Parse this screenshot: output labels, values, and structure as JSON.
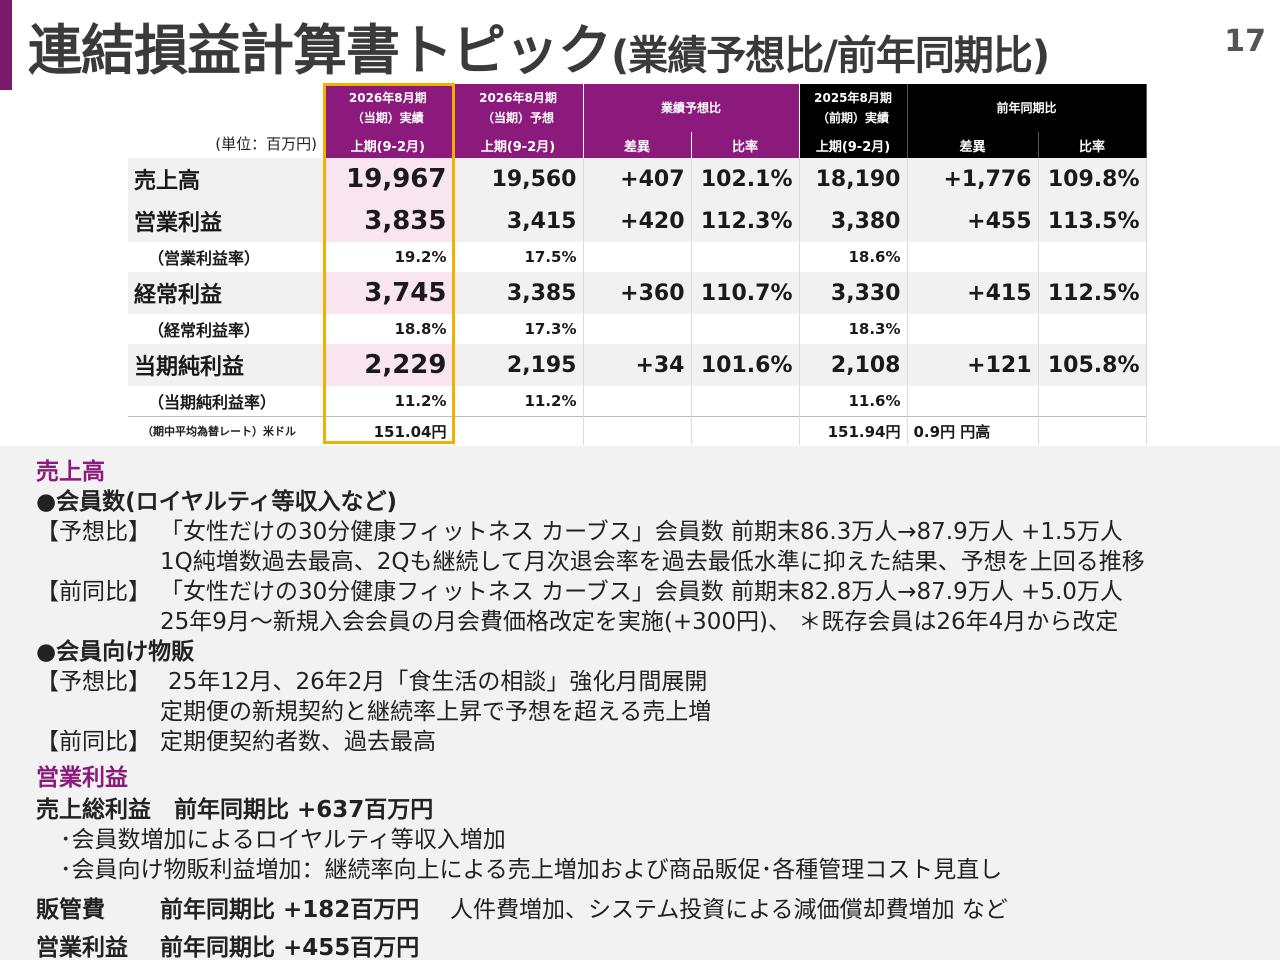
{
  "header": {
    "title_main": "連結損益計算書トピック",
    "title_sub": "(業績予想比/前年同期比)",
    "page_number": "17"
  },
  "table": {
    "unit_label": "(単位：百万円)",
    "col_headers": {
      "current_actual": "2026年8月期\n（当期）実績",
      "current_forecast": "2026年8月期\n（当期）予想",
      "vs_forecast": "業績予想比",
      "prior_actual": "2025年8月期\n（前期）実績",
      "vs_prior": "前年同期比"
    },
    "sub_headers": [
      "上期(9-2月)",
      "上期(9-2月)",
      "差異",
      "比率",
      "上期(9-2月)",
      "差異",
      "比率"
    ],
    "rows": [
      {
        "label": "売上高",
        "type": "main",
        "cells": [
          "19,967",
          "19,560",
          "+407",
          "102.1%",
          "18,190",
          "+1,776",
          "109.8%"
        ]
      },
      {
        "label": "営業利益",
        "type": "main",
        "cells": [
          "3,835",
          "3,415",
          "+420",
          "112.3%",
          "3,380",
          "+455",
          "113.5%"
        ]
      },
      {
        "label": "（営業利益率）",
        "type": "sub",
        "cells": [
          "19.2%",
          "17.5%",
          "",
          "",
          "18.6%",
          "",
          ""
        ]
      },
      {
        "label": "経常利益",
        "type": "main",
        "cells": [
          "3,745",
          "3,385",
          "+360",
          "110.7%",
          "3,330",
          "+415",
          "112.5%"
        ]
      },
      {
        "label": "（経常利益率）",
        "type": "sub",
        "cells": [
          "18.8%",
          "17.3%",
          "",
          "",
          "18.3%",
          "",
          ""
        ]
      },
      {
        "label": "当期純利益",
        "type": "main",
        "cells": [
          "2,229",
          "2,195",
          "+34",
          "101.6%",
          "2,108",
          "+121",
          "105.8%"
        ]
      },
      {
        "label": "（当期純利益率）",
        "type": "sub",
        "cells": [
          "11.2%",
          "11.2%",
          "",
          "",
          "11.6%",
          "",
          ""
        ]
      },
      {
        "label": "（期中平均為替レート）米ドル",
        "type": "fx",
        "cells": [
          "151.04円",
          "",
          "",
          "",
          "151.94円",
          "0.9円 円高",
          ""
        ]
      }
    ]
  },
  "notes": {
    "sales": {
      "heading": "売上高",
      "members_heading": "●会員数(ロイヤルティ等収入など)",
      "members_forecast_tag": "【予想比】",
      "members_forecast_1": "「女性だけの30分健康フィットネス カーブス」会員数 前期末86.3万人→87.9万人 +1.5万人",
      "members_forecast_2": "1Q純増数過去最高、2Qも継続して月次退会率を過去最低水準に抑えた結果、予想を上回る推移",
      "members_prior_tag": "【前同比】",
      "members_prior_1": "「女性だけの30分健康フィットネス カーブス」会員数 前期末82.8万人→87.9万人 +5.0万人",
      "members_prior_2": "25年9月～新規入会会員の月会費価格改定を実施(+300円)、 ＊既存会員は26年4月から改定",
      "goods_heading": "●会員向け物販",
      "goods_forecast_tag": "【予想比】",
      "goods_forecast_1": "25年12月、26年2月「食生活の相談」強化月間展開",
      "goods_forecast_2": "定期便の新規契約と継続率上昇で予想を超える売上増",
      "goods_prior_tag": "【前同比】",
      "goods_prior_1": "定期便契約者数、過去最高"
    },
    "operating": {
      "heading": "営業利益",
      "gross_label": "売上総利益　前年同期比 +637百万円",
      "gross_item_1": "･会員数増加によるロイヤルティ等収入増加",
      "gross_item_2": "･会員向け物販利益増加：継続率向上による売上増加および商品販促･各種管理コスト見直し",
      "sga_label": "販管費",
      "sga_value": "前年同期比 +182百万円",
      "sga_note": "人件費増加、システム投資による減価償却費増加 など",
      "op_label": "営業利益",
      "op_value": "前年同期比 +455百万円"
    }
  },
  "colors": {
    "accent": "#8c1a7c",
    "highlight_box": "#f2b100",
    "current_cell": "#f9e5ef"
  }
}
